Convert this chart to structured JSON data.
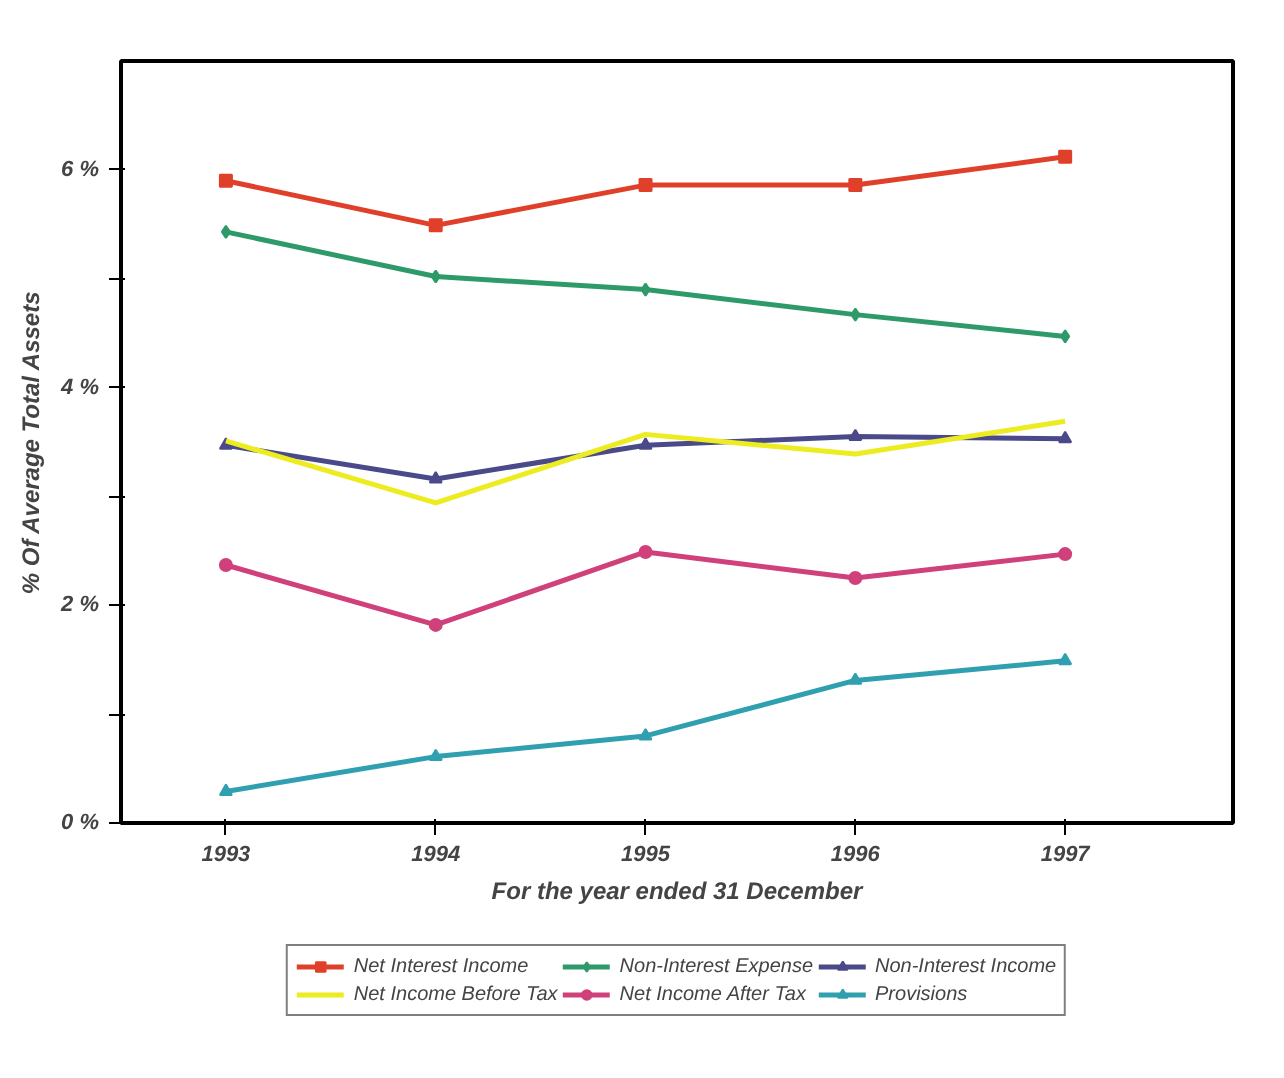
{
  "chart_data": {
    "type": "line",
    "categories": [
      "1993",
      "1994",
      "1995",
      "1996",
      "1997"
    ],
    "xlabel": "For the year ended 31 December",
    "ylabel": "% Of Average Total Assets",
    "ylim": [
      0,
      7
    ],
    "yticks": [
      {
        "value": 0,
        "label": "0 %"
      },
      {
        "value": 1,
        "label": null
      },
      {
        "value": 2,
        "label": "2 %"
      },
      {
        "value": 3,
        "label": null
      },
      {
        "value": 4,
        "label": "4 %"
      },
      {
        "value": 5,
        "label": null
      },
      {
        "value": 6,
        "label": "6 %"
      }
    ],
    "grid": false,
    "legend": "bottom",
    "line_style": "solid",
    "series": [
      {
        "name": "Net Interest Income",
        "color": "#e0402a",
        "marker": "square",
        "values": [
          5.9,
          5.49,
          5.86,
          5.86,
          6.12
        ]
      },
      {
        "name": "Non-Interest Expense",
        "color": "#2e9a6a",
        "marker": "diamond",
        "values": [
          5.43,
          5.02,
          4.9,
          4.67,
          4.47
        ]
      },
      {
        "name": "Non-Interest Income",
        "color": "#4a4a8a",
        "marker": "triangle",
        "values": [
          3.47,
          3.16,
          3.47,
          3.55,
          3.53
        ]
      },
      {
        "name": "Net Income Before Tax",
        "color": "#ecec20",
        "marker": "none",
        "values": [
          3.51,
          2.94,
          3.57,
          3.39,
          3.69
        ]
      },
      {
        "name": "Net Income After Tax",
        "color": "#d0407a",
        "marker": "circle",
        "values": [
          2.37,
          1.82,
          2.49,
          2.25,
          2.47
        ]
      },
      {
        "name": "Provisions",
        "color": "#30a0b0",
        "marker": "triangle",
        "values": [
          0.29,
          0.61,
          0.8,
          1.31,
          1.49
        ]
      }
    ]
  }
}
